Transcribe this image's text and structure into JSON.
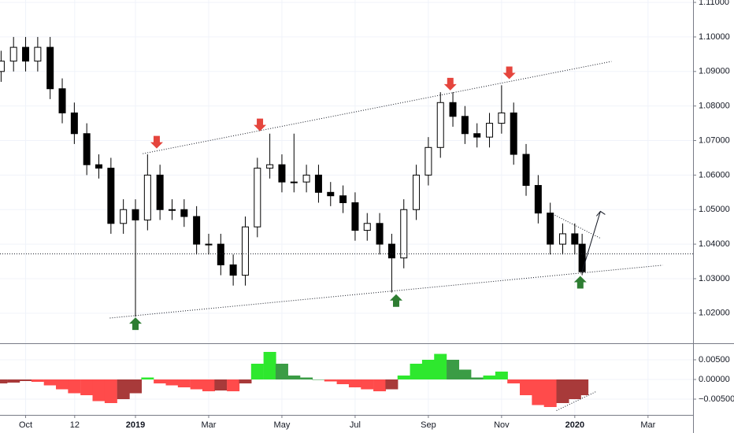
{
  "chart_data": [
    {
      "type": "candlestick",
      "x": [
        -0.67,
        -0.33,
        0,
        0.33,
        0.67,
        1,
        1.33,
        1.67,
        2,
        2.33,
        2.67,
        3,
        3.33,
        3.67,
        4,
        4.33,
        4.67,
        5,
        5.33,
        5.67,
        6,
        6.33,
        6.67,
        7,
        7.33,
        7.67,
        8,
        8.33,
        8.67,
        9,
        9.33,
        9.67,
        10,
        10.33,
        10.67,
        11,
        11.33,
        11.67,
        12,
        12.33,
        12.67,
        13,
        13.33,
        13.67,
        14,
        14.33,
        14.67,
        15,
        15.2
      ],
      "open": [
        1.09,
        1.093,
        1.097,
        1.093,
        1.097,
        1.085,
        1.078,
        1.072,
        1.063,
        1.062,
        1.046,
        1.05,
        1.047,
        1.06,
        1.05,
        1.05,
        1.048,
        1.04,
        1.04,
        1.034,
        1.031,
        1.045,
        1.062,
        1.063,
        1.058,
        1.058,
        1.06,
        1.055,
        1.054,
        1.052,
        1.044,
        1.046,
        1.04,
        1.036,
        1.05,
        1.06,
        1.068,
        1.081,
        1.077,
        1.072,
        1.071,
        1.075,
        1.078,
        1.066,
        1.057,
        1.049,
        1.04,
        1.043,
        1.04
      ],
      "high": [
        1.096,
        1.1,
        1.1,
        1.1,
        1.1,
        1.088,
        1.081,
        1.075,
        1.066,
        1.065,
        1.053,
        1.053,
        1.066,
        1.063,
        1.053,
        1.053,
        1.051,
        1.043,
        1.043,
        1.037,
        1.048,
        1.065,
        1.072,
        1.066,
        1.072,
        1.063,
        1.063,
        1.058,
        1.057,
        1.055,
        1.049,
        1.049,
        1.043,
        1.053,
        1.063,
        1.071,
        1.084,
        1.084,
        1.08,
        1.075,
        1.078,
        1.086,
        1.081,
        1.069,
        1.06,
        1.052,
        1.046,
        1.046,
        1.043
      ],
      "low": [
        1.087,
        1.09,
        1.09,
        1.09,
        1.082,
        1.075,
        1.069,
        1.06,
        1.059,
        1.043,
        1.043,
        1.019,
        1.044,
        1.047,
        1.047,
        1.045,
        1.037,
        1.037,
        1.031,
        1.028,
        1.028,
        1.042,
        1.059,
        1.055,
        1.055,
        1.055,
        1.052,
        1.051,
        1.049,
        1.041,
        1.041,
        1.037,
        1.026,
        1.033,
        1.047,
        1.057,
        1.065,
        1.074,
        1.069,
        1.068,
        1.068,
        1.072,
        1.063,
        1.054,
        1.046,
        1.037,
        1.037,
        1.037,
        1.031
      ],
      "close": [
        1.093,
        1.097,
        1.093,
        1.097,
        1.085,
        1.078,
        1.072,
        1.063,
        1.062,
        1.046,
        1.05,
        1.047,
        1.06,
        1.05,
        1.05,
        1.048,
        1.04,
        1.04,
        1.034,
        1.031,
        1.045,
        1.062,
        1.063,
        1.058,
        1.058,
        1.06,
        1.055,
        1.054,
        1.052,
        1.044,
        1.046,
        1.04,
        1.036,
        1.05,
        1.06,
        1.068,
        1.081,
        1.077,
        1.072,
        1.071,
        1.075,
        1.078,
        1.066,
        1.057,
        1.049,
        1.04,
        1.043,
        1.04,
        1.032
      ],
      "up_color": "#ffffff",
      "down_color": "#000000",
      "xlim": [
        -0.7,
        18.23
      ],
      "ylim": [
        1.0113,
        1.1107
      ],
      "yticks": [
        {
          "value": 1.11,
          "label": "1.11000"
        },
        {
          "value": 1.1,
          "label": "1.10000"
        },
        {
          "value": 1.09,
          "label": "1.09000"
        },
        {
          "value": 1.08,
          "label": "1.08000"
        },
        {
          "value": 1.07,
          "label": "1.07000"
        },
        {
          "value": 1.06,
          "label": "1.06000"
        },
        {
          "value": 1.05,
          "label": "1.05000"
        },
        {
          "value": 1.04,
          "label": "1.04000"
        },
        {
          "value": 1.03,
          "label": "1.03000"
        },
        {
          "value": 1.02,
          "label": "1.02000"
        }
      ],
      "grid": true,
      "reference_line": 1.0372,
      "trend_lines": [
        {
          "x": [
            3.2,
            16.0
          ],
          "y": [
            1.0662,
            1.0929
          ]
        },
        {
          "x": [
            2.3,
            17.4
          ],
          "y": [
            1.0186,
            1.0339
          ]
        },
        {
          "x": [
            14.4,
            15.7
          ],
          "y": [
            1.0487,
            1.0417
          ]
        },
        {
          "x": [
            15.2,
            15.7
          ],
          "y": [
            1.032,
            1.0495
          ]
        }
      ],
      "signals_down": {
        "color": "#e5453d",
        "x": [
          3.58,
          6.4,
          11.6,
          13.21
        ],
        "y": [
          1.0677,
          1.0727,
          1.0845,
          1.0878
        ]
      },
      "signals_up": {
        "color": "#2e7d32",
        "x": [
          3.0,
          10.12,
          15.15
        ],
        "y": [
          1.0188,
          1.0255,
          1.0308
        ]
      }
    },
    {
      "type": "histogram",
      "x": [
        -0.67,
        -0.33,
        0,
        0.33,
        0.67,
        1,
        1.33,
        1.67,
        2,
        2.33,
        2.67,
        3,
        3.33,
        3.67,
        4,
        4.33,
        4.67,
        5,
        5.33,
        5.67,
        6,
        6.33,
        6.67,
        7,
        7.33,
        7.67,
        8,
        8.33,
        8.67,
        9,
        9.33,
        9.67,
        10,
        10.33,
        10.67,
        11,
        11.33,
        11.67,
        12,
        12.33,
        12.67,
        13,
        13.33,
        13.67,
        14,
        14.33,
        14.67,
        15,
        15.2
      ],
      "values": [
        -0.001,
        -0.0008,
        -0.0004,
        -0.0006,
        -0.0015,
        -0.0025,
        -0.0035,
        -0.004,
        -0.0055,
        -0.006,
        -0.005,
        -0.0035,
        0.0005,
        -0.001,
        -0.0015,
        -0.002,
        -0.0025,
        -0.003,
        -0.0028,
        -0.003,
        -0.001,
        0.004,
        0.007,
        0.004,
        0.001,
        0.0005,
        0,
        -0.0005,
        -0.0012,
        -0.002,
        -0.0025,
        -0.003,
        -0.0025,
        0.001,
        0.004,
        0.005,
        0.0065,
        0.005,
        0.0025,
        0.0005,
        0.001,
        0.002,
        -0.001,
        -0.004,
        -0.0065,
        -0.007,
        -0.006,
        -0.005,
        -0.004
      ],
      "colors": {
        "positive_rising": "#2ee82e",
        "positive_falling": "#3b9c45",
        "negative_falling": "#ff4b4b",
        "negative_rising": "#a83a3a"
      },
      "xlim": [
        -0.7,
        18.23
      ],
      "ylim": [
        -0.009,
        0.009
      ],
      "yticks": [
        {
          "value": 0.005,
          "label": "0.00500"
        },
        {
          "value": 0,
          "label": "0.00000"
        },
        {
          "value": -0.005,
          "label": "−0.00500"
        }
      ],
      "xticks": [
        {
          "value": 0,
          "label": "Oct"
        },
        {
          "value": 1.34,
          "label": "12"
        },
        {
          "value": 3,
          "label": "2019"
        },
        {
          "value": 5,
          "label": "Mar"
        },
        {
          "value": 7,
          "label": "May"
        },
        {
          "value": 9,
          "label": "Jul"
        },
        {
          "value": 11,
          "label": "Sep"
        },
        {
          "value": 13,
          "label": "Nov"
        },
        {
          "value": 15,
          "label": "2020"
        },
        {
          "value": 17,
          "label": "Mar"
        }
      ],
      "grid": true,
      "trend_lines": [
        {
          "x": [
            14.5,
            15.6
          ],
          "y": [
            -0.0079,
            -0.003
          ]
        }
      ]
    }
  ]
}
